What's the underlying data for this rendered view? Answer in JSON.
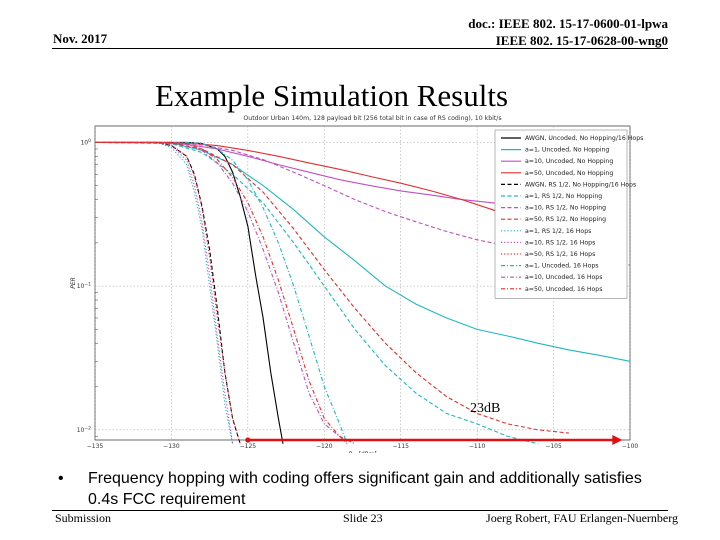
{
  "header": {
    "date": "Nov. 2017",
    "doc_line1": "doc.: IEEE 802. 15-17-0600-01-lpwa",
    "doc_line2": "IEEE 802. 15-17-0628-00-wng0"
  },
  "slide_title": "Example Simulation Results",
  "bullet": {
    "marker": "•",
    "text": "Frequency hopping with coding offers significant gain and additionally satisfies 0.4s FCC requirement"
  },
  "annotation": {
    "gain_label": "23dB",
    "arrow_from_dbm": -125,
    "arrow_to_dbm": -100.5,
    "arrow_at_per": 0.0085
  },
  "footer": {
    "left": "Submission",
    "center": "Slide 23",
    "right": "Joerg Robert, FAU Erlangen-Nuernberg"
  },
  "colors": {
    "red_arrow": "#e01010"
  },
  "chart_data": {
    "type": "line",
    "title": "Outdoor Urban 140m, 128 payload bit (256 total bit in case of RS coding), 10 kbit/s",
    "xlabel": "P_rx [dBm]",
    "ylabel": "PER",
    "xlim": [
      -135,
      -100
    ],
    "ylim": [
      0.0085,
      1.3
    ],
    "yscale": "log",
    "x_ticks": [
      "-135",
      "-130",
      "-125",
      "-120",
      "-115",
      "-110",
      "-105",
      "-100"
    ],
    "y_ticks": [
      "10^0",
      "10^-1",
      "10^-2"
    ],
    "grid": true,
    "legend_position": "top-right",
    "series": [
      {
        "name": "AWGN, Uncoded, No Hopping/16 Hops",
        "color": "#000000",
        "dash": "solid",
        "x": [
          -135,
          -129,
          -128,
          -127,
          -126.5,
          -126,
          -125.5,
          -125,
          -124.5,
          -124,
          -123.5,
          -123,
          -122.7
        ],
        "y": [
          1,
          1,
          0.98,
          0.9,
          0.8,
          0.62,
          0.42,
          0.26,
          0.12,
          0.06,
          0.025,
          0.012,
          0.008
        ]
      },
      {
        "name": "a=1, Uncoded, No Hopping",
        "color": "#20b8c0",
        "dash": "solid",
        "x": [
          -135,
          -130,
          -128,
          -126,
          -124,
          -122,
          -120,
          -118,
          -116,
          -114,
          -112,
          -110,
          -108,
          -106,
          -104,
          -102,
          -100
        ],
        "y": [
          1,
          0.99,
          0.88,
          0.7,
          0.5,
          0.34,
          0.22,
          0.15,
          0.1,
          0.075,
          0.06,
          0.05,
          0.045,
          0.04,
          0.036,
          0.033,
          0.03
        ]
      },
      {
        "name": "a=10, Uncoded, No Hopping",
        "color": "#c050c0",
        "dash": "solid",
        "x": [
          -135,
          -131,
          -129,
          -127,
          -125,
          -123,
          -121,
          -119,
          -117,
          -115,
          -113,
          -111,
          -109,
          -107,
          -105,
          -103,
          -101
        ],
        "y": [
          1,
          1,
          0.97,
          0.9,
          0.8,
          0.7,
          0.62,
          0.55,
          0.5,
          0.46,
          0.43,
          0.4,
          0.38,
          0.36,
          0.35,
          0.34,
          0.33
        ]
      },
      {
        "name": "a=50, Uncoded, No Hopping",
        "color": "#e03030",
        "dash": "solid",
        "x": [
          -135,
          -131,
          -129,
          -127,
          -125,
          -123,
          -121,
          -119,
          -117,
          -115,
          -113,
          -111,
          -109,
          -107,
          -105,
          -103,
          -101
        ],
        "y": [
          1,
          1,
          0.99,
          0.95,
          0.88,
          0.8,
          0.72,
          0.65,
          0.58,
          0.52,
          0.46,
          0.4,
          0.34,
          0.28,
          0.22,
          0.17,
          0.13
        ]
      },
      {
        "name": "AWGN, RS 1/2, No Hopping/16 Hops",
        "color": "#000000",
        "dash": "dashed",
        "x": [
          -135,
          -131,
          -130,
          -129,
          -128.5,
          -128,
          -127.5,
          -127,
          -126.5,
          -126,
          -125.5
        ],
        "y": [
          1,
          1,
          0.95,
          0.8,
          0.6,
          0.36,
          0.18,
          0.07,
          0.025,
          0.012,
          0.008
        ]
      },
      {
        "name": "a=1, RS 1/2, No Hopping",
        "color": "#20b8c0",
        "dash": "dashed",
        "x": [
          -135,
          -130,
          -128,
          -126,
          -124,
          -122,
          -120,
          -118,
          -116,
          -114,
          -112,
          -110,
          -108,
          -106
        ],
        "y": [
          1,
          0.98,
          0.85,
          0.6,
          0.38,
          0.2,
          0.1,
          0.05,
          0.028,
          0.018,
          0.013,
          0.011,
          0.009,
          0.008
        ]
      },
      {
        "name": "a=10, RS 1/2, No Hopping",
        "color": "#c050c0",
        "dash": "dashed",
        "x": [
          -135,
          -130,
          -128,
          -126,
          -124,
          -122,
          -120,
          -118,
          -116,
          -114,
          -112,
          -110,
          -108,
          -106,
          -104,
          -102,
          -100
        ],
        "y": [
          1,
          1,
          0.96,
          0.88,
          0.76,
          0.62,
          0.5,
          0.4,
          0.33,
          0.28,
          0.24,
          0.21,
          0.19,
          0.17,
          0.16,
          0.15,
          0.14
        ]
      },
      {
        "name": "a=50, RS 1/2, No Hopping",
        "color": "#e03030",
        "dash": "dashed",
        "x": [
          -135,
          -130,
          -128,
          -126,
          -124,
          -122,
          -120,
          -118,
          -116,
          -114,
          -112,
          -110,
          -108,
          -106,
          -104
        ],
        "y": [
          1,
          0.99,
          0.9,
          0.7,
          0.45,
          0.25,
          0.13,
          0.07,
          0.04,
          0.025,
          0.017,
          0.013,
          0.011,
          0.01,
          0.0095
        ]
      },
      {
        "name": "a=1, RS 1/2, 16 Hops",
        "color": "#20b8c0",
        "dash": "dotted",
        "x": [
          -135,
          -131,
          -130,
          -129,
          -128.5,
          -128,
          -127.5,
          -127,
          -126.5,
          -126
        ],
        "y": [
          1,
          1,
          0.92,
          0.7,
          0.45,
          0.25,
          0.1,
          0.04,
          0.015,
          0.008
        ]
      },
      {
        "name": "a=10, RS 1/2, 16 Hops",
        "color": "#c050c0",
        "dash": "dotted",
        "x": [
          -135,
          -131,
          -130,
          -129,
          -128.5,
          -128,
          -127.5,
          -127,
          -126.5,
          -126
        ],
        "y": [
          1,
          1,
          0.95,
          0.75,
          0.5,
          0.28,
          0.12,
          0.045,
          0.018,
          0.008
        ]
      },
      {
        "name": "a=50, RS 1/2, 16 Hops",
        "color": "#e03030",
        "dash": "dotted",
        "x": [
          -135,
          -131,
          -130,
          -129,
          -128.5,
          -128,
          -127.5,
          -127,
          -126.5,
          -126,
          -125.5
        ],
        "y": [
          1,
          1,
          0.96,
          0.8,
          0.58,
          0.35,
          0.16,
          0.06,
          0.025,
          0.012,
          0.008
        ]
      },
      {
        "name": "a=1, Uncoded, 16 Hops",
        "color": "#20b8c0",
        "dash": "dashdot",
        "x": [
          -135,
          -129,
          -128,
          -127,
          -126,
          -125,
          -124,
          -123,
          -122,
          -121,
          -120,
          -119,
          -118.5
        ],
        "y": [
          1,
          1,
          0.98,
          0.9,
          0.75,
          0.55,
          0.35,
          0.2,
          0.1,
          0.045,
          0.02,
          0.011,
          0.008
        ]
      },
      {
        "name": "a=10, Uncoded, 16 Hops",
        "color": "#c050c0",
        "dash": "dashdot",
        "x": [
          -135,
          -130,
          -129,
          -128,
          -127,
          -126,
          -125,
          -124,
          -123,
          -122,
          -121,
          -120,
          -119,
          -118.5
        ],
        "y": [
          1,
          1,
          0.97,
          0.88,
          0.72,
          0.52,
          0.33,
          0.18,
          0.09,
          0.04,
          0.018,
          0.011,
          0.009,
          0.008
        ]
      },
      {
        "name": "a=50, Uncoded, 16 Hops",
        "color": "#e03030",
        "dash": "dashdot",
        "x": [
          -135,
          -130,
          -129,
          -128,
          -127,
          -126,
          -125,
          -124,
          -123,
          -122,
          -121,
          -120,
          -119,
          -118
        ],
        "y": [
          1,
          1,
          0.98,
          0.9,
          0.76,
          0.57,
          0.38,
          0.22,
          0.11,
          0.05,
          0.022,
          0.012,
          0.009,
          0.008
        ]
      }
    ]
  }
}
